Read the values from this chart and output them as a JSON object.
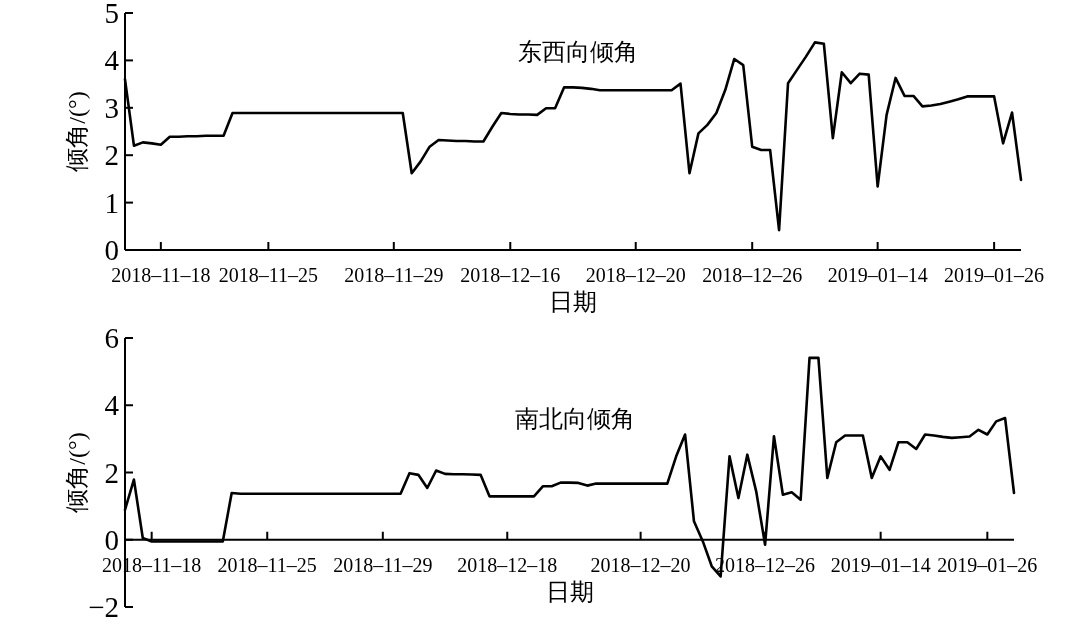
{
  "chart_data": [
    {
      "type": "line",
      "title": "东西向倾角",
      "xlabel": "日期",
      "ylabel": "倾角/(°)",
      "ylim": [
        0,
        5
      ],
      "yticks": [
        0,
        1,
        2,
        3,
        4,
        5
      ],
      "categories": [
        null,
        null,
        null,
        null,
        "2018–11–18",
        null,
        null,
        null,
        null,
        null,
        null,
        null,
        null,
        null,
        null,
        null,
        "2018–11–25",
        null,
        null,
        null,
        null,
        null,
        null,
        null,
        null,
        null,
        null,
        null,
        null,
        null,
        "2018–11–29",
        null,
        null,
        null,
        null,
        null,
        null,
        null,
        null,
        null,
        null,
        null,
        null,
        "2018–12–16",
        null,
        null,
        null,
        null,
        null,
        null,
        null,
        null,
        null,
        null,
        null,
        null,
        null,
        "2018–12–20",
        null,
        null,
        null,
        null,
        null,
        null,
        null,
        null,
        null,
        null,
        null,
        null,
        "2018–12–26",
        null,
        null,
        null,
        null,
        null,
        null,
        null,
        null,
        null,
        null,
        null,
        null,
        null,
        "2019–01–14",
        null,
        null,
        null,
        null,
        null,
        null,
        null,
        null,
        null,
        null,
        null,
        null,
        "2019–01–26",
        null,
        null,
        null
      ],
      "series": [
        {
          "color": "#000000",
          "values": [
            3.6,
            2.2,
            2.27,
            2.25,
            2.22,
            2.39,
            2.39,
            2.4,
            2.4,
            2.41,
            2.41,
            2.41,
            2.89,
            2.89,
            2.89,
            2.89,
            2.89,
            2.89,
            2.89,
            2.89,
            2.89,
            2.89,
            2.89,
            2.89,
            2.89,
            2.89,
            2.89,
            2.89,
            2.89,
            2.89,
            2.89,
            2.89,
            1.62,
            1.87,
            2.18,
            2.32,
            2.31,
            2.3,
            2.3,
            2.29,
            2.29,
            2.6,
            2.89,
            2.87,
            2.86,
            2.86,
            2.85,
            2.99,
            2.99,
            3.43,
            3.43,
            3.42,
            3.4,
            3.37,
            3.37,
            3.37,
            3.37,
            3.37,
            3.37,
            3.37,
            3.37,
            3.37,
            3.51,
            1.62,
            2.46,
            2.64,
            2.89,
            3.38,
            4.03,
            3.9,
            2.18,
            2.11,
            2.11,
            0.42,
            3.52,
            3.8,
            4.08,
            4.38,
            4.35,
            2.36,
            3.75,
            3.52,
            3.72,
            3.7,
            1.34,
            2.85,
            3.63,
            3.25,
            3.25,
            3.03,
            3.05,
            3.08,
            3.13,
            3.18,
            3.24,
            3.24,
            3.24,
            3.24,
            2.25,
            2.9,
            1.48
          ]
        }
      ]
    },
    {
      "type": "line",
      "title": "南北向倾角",
      "xlabel": "日期",
      "ylabel": "倾角/(°)",
      "ylim": [
        -2,
        6
      ],
      "yticks": [
        -2,
        0,
        2,
        4,
        6
      ],
      "categories": [
        null,
        null,
        null,
        "2018–11–18",
        null,
        null,
        null,
        null,
        null,
        null,
        null,
        null,
        null,
        null,
        null,
        null,
        "2018–11–25",
        null,
        null,
        null,
        null,
        null,
        null,
        null,
        null,
        null,
        null,
        null,
        null,
        "2018–11–29",
        null,
        null,
        null,
        null,
        null,
        null,
        null,
        null,
        null,
        null,
        null,
        null,
        null,
        "2018–12–18",
        null,
        null,
        null,
        null,
        null,
        null,
        null,
        null,
        null,
        null,
        null,
        null,
        null,
        null,
        "2018–12–20",
        null,
        null,
        null,
        null,
        null,
        null,
        null,
        null,
        null,
        null,
        null,
        null,
        null,
        "2018–12–26",
        null,
        null,
        null,
        null,
        null,
        null,
        null,
        null,
        null,
        null,
        null,
        null,
        "2019–01–14",
        null,
        null,
        null,
        null,
        null,
        null,
        null,
        null,
        null,
        null,
        null,
        "2019–01–26",
        null,
        null,
        null
      ],
      "series": [
        {
          "color": "#000000",
          "values": [
            0.89,
            1.79,
            0.05,
            -0.05,
            -0.05,
            -0.05,
            -0.05,
            -0.05,
            -0.05,
            -0.05,
            -0.05,
            -0.05,
            1.39,
            1.37,
            1.37,
            1.37,
            1.37,
            1.37,
            1.37,
            1.37,
            1.37,
            1.37,
            1.37,
            1.37,
            1.37,
            1.37,
            1.37,
            1.37,
            1.37,
            1.37,
            1.37,
            1.37,
            1.98,
            1.93,
            1.54,
            2.06,
            1.96,
            1.95,
            1.95,
            1.94,
            1.93,
            1.29,
            1.29,
            1.29,
            1.29,
            1.29,
            1.29,
            1.59,
            1.59,
            1.7,
            1.7,
            1.69,
            1.61,
            1.67,
            1.67,
            1.67,
            1.67,
            1.67,
            1.67,
            1.67,
            1.67,
            1.67,
            2.48,
            3.13,
            0.55,
            -0.05,
            -0.79,
            -1.09,
            2.48,
            1.24,
            2.53,
            1.44,
            -0.15,
            3.08,
            1.34,
            1.41,
            1.19,
            5.41,
            5.41,
            1.84,
            2.9,
            3.1,
            3.1,
            3.1,
            1.84,
            2.48,
            2.08,
            2.9,
            2.9,
            2.7,
            3.13,
            3.1,
            3.06,
            3.03,
            3.05,
            3.07,
            3.27,
            3.13,
            3.52,
            3.62,
            1.39
          ]
        }
      ]
    }
  ]
}
